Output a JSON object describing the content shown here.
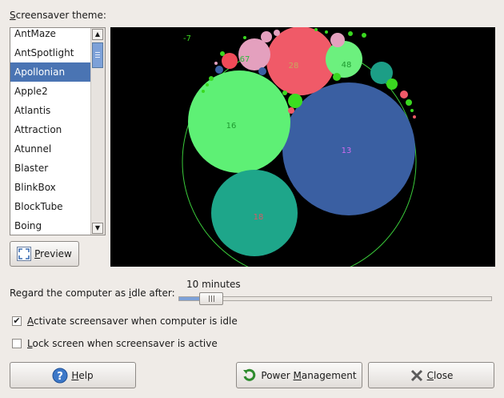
{
  "theme_label": "Screensaver theme:",
  "theme_list": {
    "items": [
      "AntMaze",
      "AntSpotlight",
      "Apollonian",
      "Apple2",
      "Atlantis",
      "Attraction",
      "Atunnel",
      "Blaster",
      "BlinkBox",
      "BlockTube",
      "Boing"
    ],
    "selected": "Apollonian"
  },
  "preview": {
    "button_label": "Preview",
    "circle_labels": [
      "-7",
      "67",
      "28",
      "48",
      "16",
      "13",
      "18"
    ]
  },
  "idle": {
    "label": "Regard the computer as idle after:",
    "value": "10 minutes"
  },
  "options": {
    "activate_label": "Activate screensaver when computer is idle",
    "activate_checked": true,
    "lock_label": "Lock screen when screensaver is active",
    "lock_checked": false
  },
  "buttons": {
    "help": "Help",
    "power": "Power Management",
    "close": "Close"
  },
  "colors": {
    "selection": "#4a74b3",
    "accent": "#7da1d8"
  },
  "icons": [
    "chevron-up-icon",
    "chevron-down-icon",
    "fullscreen-icon",
    "help-icon",
    "power-management-icon",
    "close-icon",
    "checkmark-icon"
  ]
}
